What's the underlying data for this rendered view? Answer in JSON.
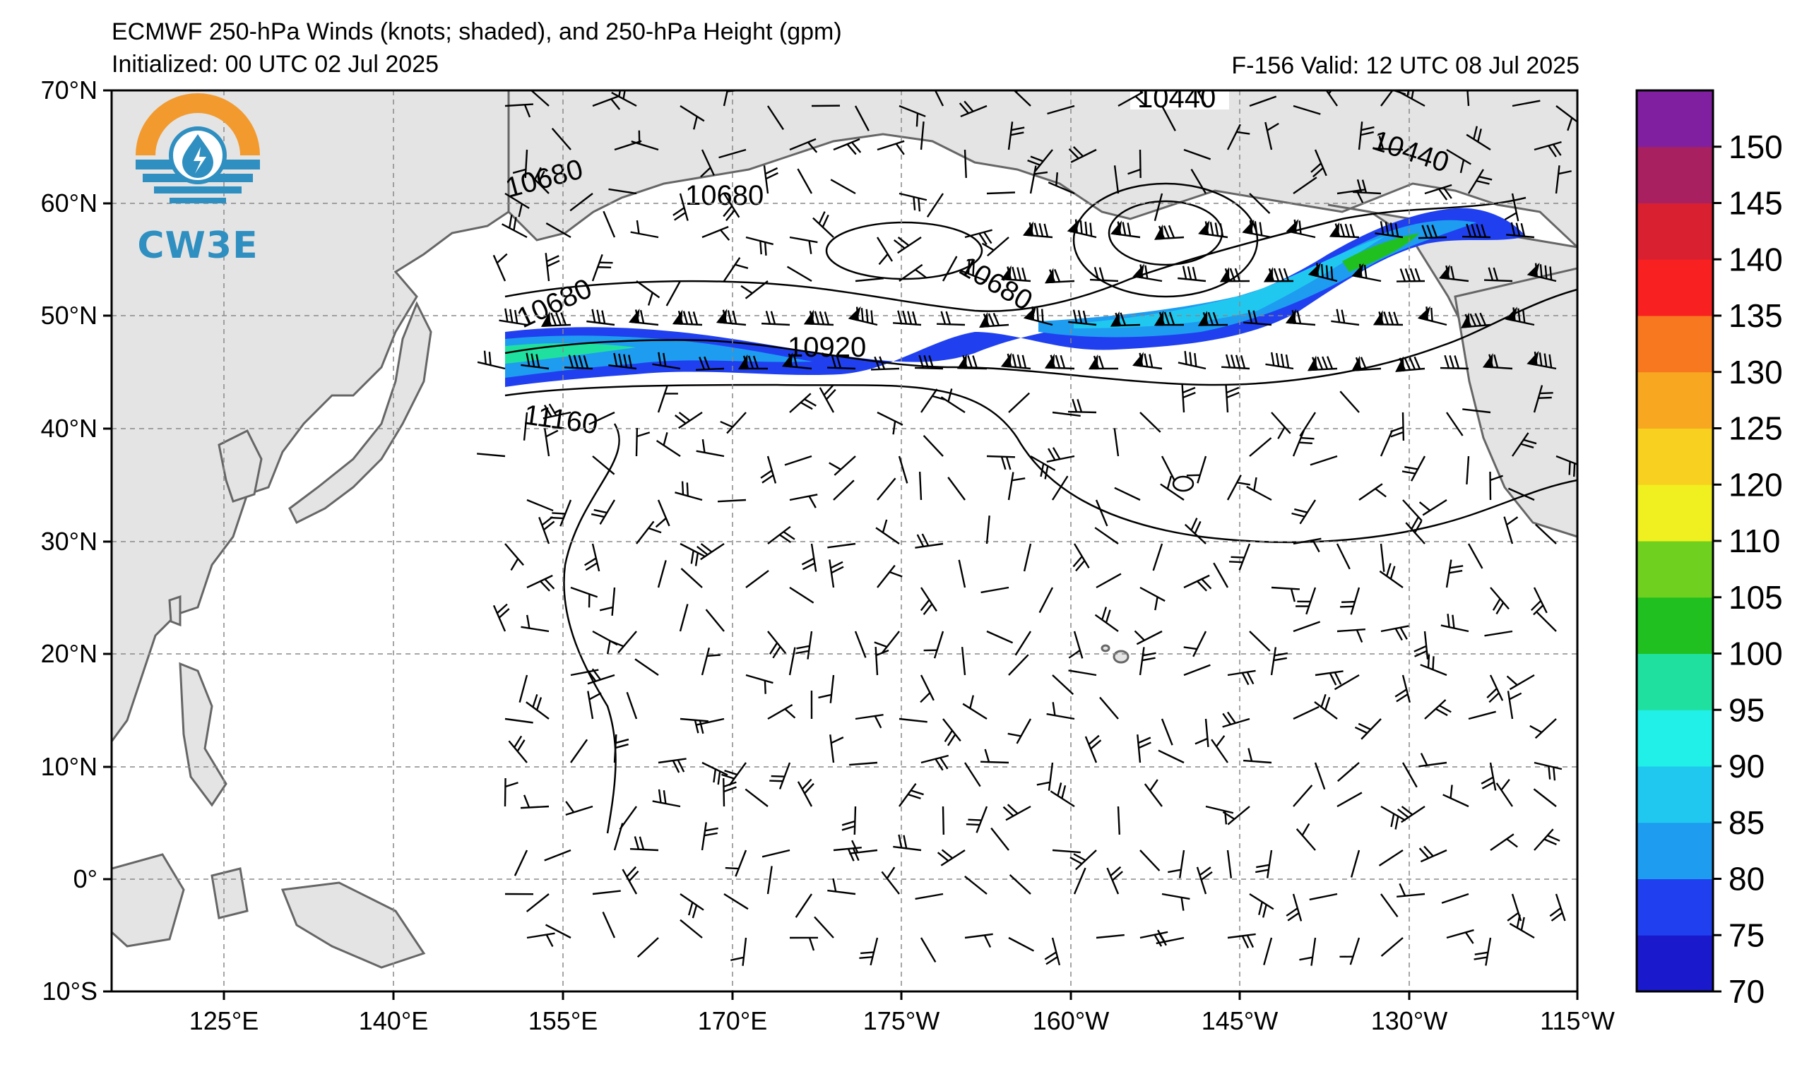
{
  "header": {
    "title": "ECMWF 250-hPa Winds (knots; shaded), and 250-hPa Height (gpm)",
    "initialized": "Initialized: 00 UTC 02 Jul 2025",
    "valid": "F-156  Valid: 12 UTC 08 Jul 2025"
  },
  "logo": {
    "text": "CW3E"
  },
  "map": {
    "lat_labels": [
      "70°N",
      "60°N",
      "50°N",
      "40°N",
      "30°N",
      "20°N",
      "10°N",
      "0°",
      "10°S"
    ],
    "lon_labels": [
      "125°E",
      "140°E",
      "155°E",
      "170°E",
      "175°W",
      "160°W",
      "145°W",
      "130°W",
      "115°W"
    ],
    "contour_labels": [
      "10440",
      "10440",
      "10680",
      "10680",
      "10680",
      "10680",
      "10920",
      "11160"
    ],
    "jet_axis_lat": [
      47,
      47,
      46,
      47,
      47,
      47,
      48,
      51,
      55,
      58
    ]
  },
  "colorbar": {
    "labels": [
      "70",
      "75",
      "80",
      "85",
      "90",
      "95",
      "100",
      "105",
      "110",
      "120",
      "125",
      "130",
      "135",
      "140",
      "145",
      "150"
    ],
    "colors": [
      "#1a1acc",
      "#2040f0",
      "#1e9cf0",
      "#20c8f0",
      "#20f0e8",
      "#20e0a0",
      "#20c020",
      "#70d020",
      "#f0f020",
      "#f8d020",
      "#f8a820",
      "#f87820",
      "#f82020",
      "#d82030",
      "#a82060",
      "#8020a0"
    ],
    "units": "knots"
  }
}
